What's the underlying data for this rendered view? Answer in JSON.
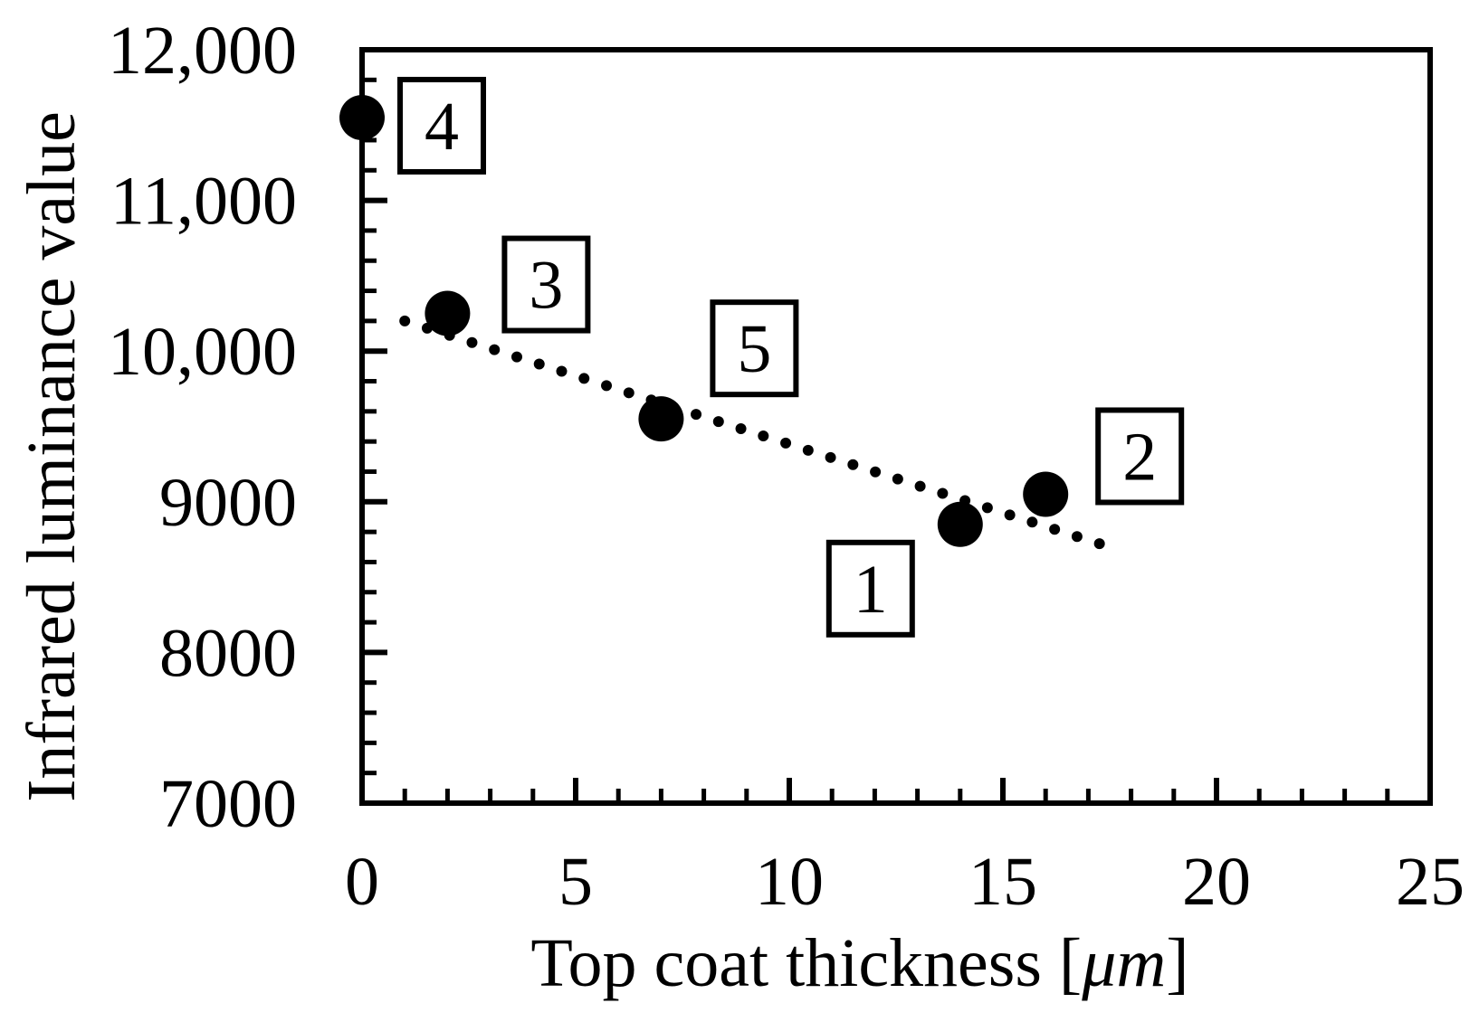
{
  "chart_data": {
    "type": "scatter",
    "title": "",
    "xlabel": "Top coat thickness [",
    "xlabel_unit": "μm",
    "xlabel_close": "]",
    "ylabel": "Infrared luminance value",
    "xlim": [
      0,
      25
    ],
    "ylim": [
      7000,
      12000
    ],
    "x_ticks": [
      0,
      5,
      10,
      15,
      20,
      25
    ],
    "x_tick_labels": [
      "0",
      "5",
      "10",
      "15",
      "20",
      "25"
    ],
    "y_ticks": [
      7000,
      8000,
      9000,
      10000,
      11000,
      12000
    ],
    "y_tick_labels": [
      "7000",
      "8000",
      "9000",
      "10,000",
      "11,000",
      "12,000"
    ],
    "grid": false,
    "points": [
      {
        "label": "1",
        "x": 14,
        "y": 8850
      },
      {
        "label": "2",
        "x": 16,
        "y": 9050
      },
      {
        "label": "3",
        "x": 2,
        "y": 10250
      },
      {
        "label": "4",
        "x": 0,
        "y": 11550
      },
      {
        "label": "5",
        "x": 7,
        "y": 9550
      }
    ],
    "trendline": {
      "style": "dotted",
      "x_start": 1,
      "y_start": 10200,
      "x_end": 17.5,
      "y_end": 8700
    },
    "colors": {
      "marker": "#000000",
      "axis": "#000000",
      "background": "#ffffff"
    }
  }
}
